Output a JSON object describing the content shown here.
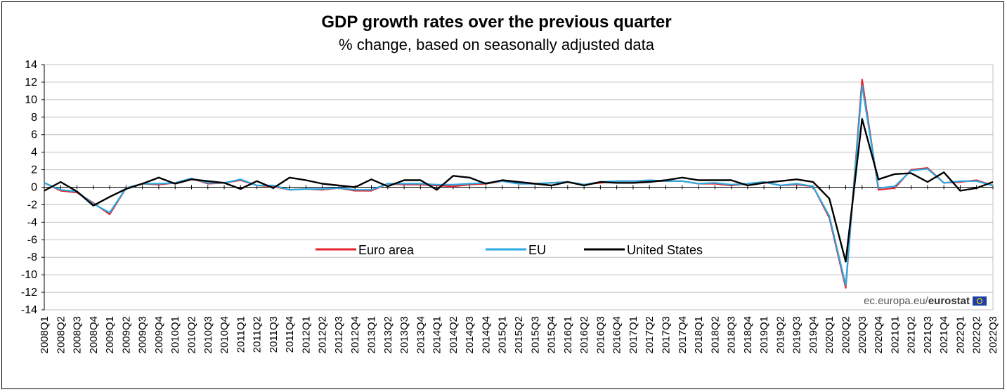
{
  "chart_data": {
    "type": "line",
    "title": "GDP growth rates over the previous quarter",
    "subtitle": "% change, based on seasonally adjusted data",
    "xlabel": "",
    "ylabel": "",
    "ylim": [
      -14,
      14
    ],
    "yticks": [
      14,
      12,
      10,
      8,
      6,
      4,
      2,
      0,
      -2,
      -4,
      -6,
      -8,
      -10,
      -12,
      -14
    ],
    "grid": true,
    "legend_position": "lower-center",
    "categories": [
      "2008Q1",
      "2008Q2",
      "2008Q3",
      "2008Q4",
      "2009Q1",
      "2009Q2",
      "2009Q3",
      "2009Q4",
      "2010Q1",
      "2010Q2",
      "2010Q3",
      "2010Q4",
      "2011Q1",
      "2011Q2",
      "2011Q3",
      "2011Q4",
      "2012Q1",
      "2012Q2",
      "2012Q3",
      "2012Q4",
      "2013Q1",
      "2013Q2",
      "2013Q3",
      "2013Q4",
      "2014Q1",
      "2014Q2",
      "2014Q3",
      "2014Q4",
      "2015Q1",
      "2015Q2",
      "2015Q3",
      "2015Q4",
      "2016Q1",
      "2016Q2",
      "2016Q3",
      "2016Q4",
      "2017Q1",
      "2017Q2",
      "2017Q3",
      "2017Q4",
      "2018Q1",
      "2018Q2",
      "2018Q3",
      "2018Q4",
      "2019Q1",
      "2019Q2",
      "2019Q3",
      "2019Q4",
      "2020Q1",
      "2020Q2",
      "2020Q3",
      "2020Q4",
      "2021Q1",
      "2021Q2",
      "2021Q3",
      "2021Q4",
      "2022Q1",
      "2022Q2",
      "2022Q3"
    ],
    "series": [
      {
        "name": "Euro area",
        "color": "#e8202a",
        "values": [
          0.5,
          -0.4,
          -0.6,
          -1.8,
          -3.1,
          -0.1,
          0.4,
          0.3,
          0.5,
          1.0,
          0.4,
          0.5,
          0.8,
          0.2,
          0.1,
          -0.3,
          -0.2,
          -0.3,
          -0.1,
          -0.4,
          -0.4,
          0.4,
          0.3,
          0.3,
          0.2,
          0.1,
          0.3,
          0.4,
          0.7,
          0.4,
          0.4,
          0.5,
          0.6,
          0.3,
          0.5,
          0.7,
          0.7,
          0.7,
          0.7,
          0.7,
          0.4,
          0.4,
          0.2,
          0.4,
          0.6,
          0.2,
          0.3,
          0.1,
          -3.5,
          -11.5,
          12.3,
          -0.3,
          -0.1,
          2.0,
          2.2,
          0.5,
          0.6,
          0.8,
          0.2
        ]
      },
      {
        "name": "EU",
        "color": "#29a9e1",
        "values": [
          0.5,
          -0.3,
          -0.5,
          -1.9,
          -2.9,
          -0.1,
          0.4,
          0.4,
          0.5,
          1.0,
          0.5,
          0.5,
          0.9,
          0.2,
          0.2,
          -0.3,
          -0.2,
          -0.2,
          -0.1,
          -0.3,
          -0.3,
          0.4,
          0.4,
          0.4,
          0.3,
          0.3,
          0.4,
          0.5,
          0.7,
          0.4,
          0.4,
          0.5,
          0.6,
          0.3,
          0.6,
          0.7,
          0.7,
          0.8,
          0.7,
          0.7,
          0.4,
          0.5,
          0.3,
          0.4,
          0.6,
          0.2,
          0.4,
          0.1,
          -3.3,
          -11.2,
          11.6,
          -0.1,
          0.1,
          1.9,
          2.1,
          0.5,
          0.7,
          0.7,
          0.2
        ]
      },
      {
        "name": "United States",
        "color": "#000000",
        "values": [
          -0.4,
          0.6,
          -0.5,
          -2.1,
          -1.1,
          -0.2,
          0.4,
          1.1,
          0.4,
          0.9,
          0.7,
          0.5,
          -0.2,
          0.7,
          -0.1,
          1.1,
          0.8,
          0.4,
          0.2,
          0.0,
          0.9,
          0.1,
          0.8,
          0.8,
          -0.3,
          1.3,
          1.1,
          0.4,
          0.8,
          0.6,
          0.4,
          0.2,
          0.6,
          0.2,
          0.6,
          0.5,
          0.5,
          0.6,
          0.8,
          1.1,
          0.8,
          0.8,
          0.8,
          0.2,
          0.5,
          0.7,
          0.9,
          0.6,
          -1.3,
          -8.5,
          7.8,
          0.9,
          1.5,
          1.6,
          0.6,
          1.7,
          -0.4,
          -0.1,
          0.6
        ]
      }
    ]
  },
  "credit": {
    "prefix": "ec.europa.eu/",
    "brand": "eurostat"
  },
  "colors": {
    "axis": "#000000",
    "grid": "#c0c0c0",
    "flag": "#1f3fa8",
    "flag_star": "#ffdd00"
  }
}
